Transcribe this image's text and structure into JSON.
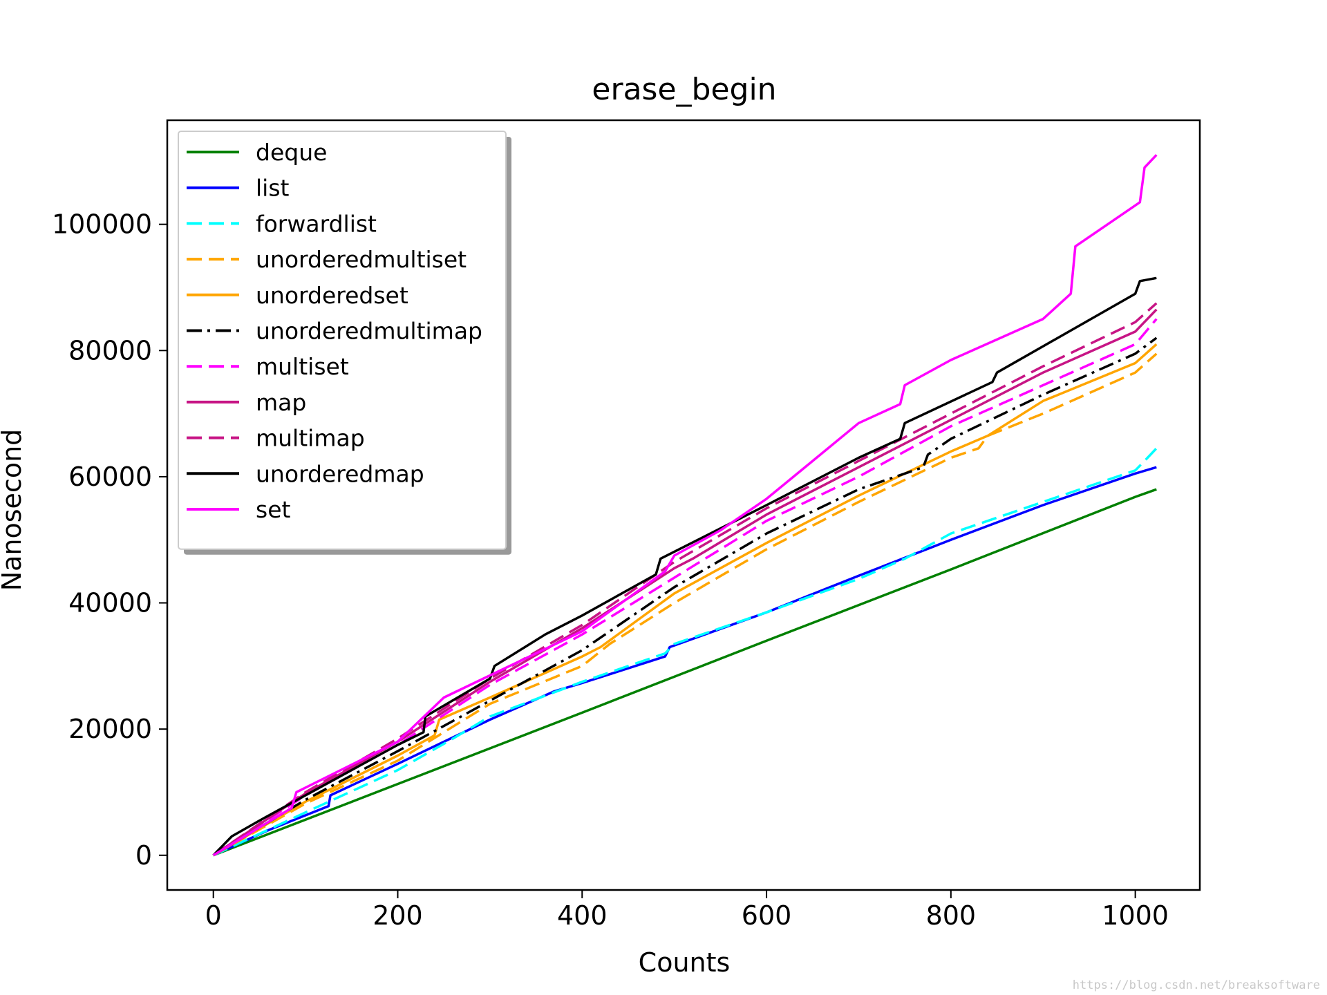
{
  "chart_data": {
    "type": "line",
    "title": "erase_begin",
    "xlabel": "Counts",
    "ylabel": "Nanosecond",
    "xlim": [
      -50,
      1070
    ],
    "ylim": [
      -5500,
      116500
    ],
    "xticks": [
      0,
      200,
      400,
      600,
      800,
      1000
    ],
    "yticks": [
      0,
      20000,
      40000,
      60000,
      80000,
      100000
    ],
    "grid": false,
    "legend_position": "upper-left",
    "series": [
      {
        "name": "deque",
        "color": "#008000",
        "dash": "solid",
        "points": [
          [
            0,
            0
          ],
          [
            200,
            11300
          ],
          [
            400,
            22600
          ],
          [
            600,
            34000
          ],
          [
            800,
            45300
          ],
          [
            1000,
            56800
          ],
          [
            1023,
            58000
          ]
        ]
      },
      {
        "name": "list",
        "color": "#0000ff",
        "dash": "solid",
        "points": [
          [
            0,
            0
          ],
          [
            60,
            4000
          ],
          [
            125,
            7800
          ],
          [
            127,
            9500
          ],
          [
            200,
            14500
          ],
          [
            300,
            21500
          ],
          [
            370,
            26000
          ],
          [
            400,
            27300
          ],
          [
            490,
            31500
          ],
          [
            495,
            33000
          ],
          [
            600,
            38500
          ],
          [
            700,
            44300
          ],
          [
            800,
            50000
          ],
          [
            900,
            55500
          ],
          [
            1000,
            60500
          ],
          [
            1023,
            61500
          ]
        ]
      },
      {
        "name": "forwardlist",
        "color": "#00ffff",
        "dash": "dashed",
        "points": [
          [
            0,
            0
          ],
          [
            100,
            6800
          ],
          [
            200,
            13500
          ],
          [
            260,
            18500
          ],
          [
            300,
            22000
          ],
          [
            400,
            27500
          ],
          [
            490,
            32000
          ],
          [
            500,
            33500
          ],
          [
            600,
            38500
          ],
          [
            700,
            43800
          ],
          [
            750,
            47000
          ],
          [
            800,
            51000
          ],
          [
            900,
            56000
          ],
          [
            1000,
            61000
          ],
          [
            1010,
            62500
          ],
          [
            1023,
            64500
          ]
        ]
      },
      {
        "name": "unorderedmultiset",
        "color": "#ffa500",
        "dash": "dashed",
        "points": [
          [
            0,
            0
          ],
          [
            100,
            8200
          ],
          [
            200,
            15000
          ],
          [
            300,
            24000
          ],
          [
            400,
            30000
          ],
          [
            430,
            33500
          ],
          [
            500,
            40000
          ],
          [
            600,
            48500
          ],
          [
            700,
            56000
          ],
          [
            800,
            63000
          ],
          [
            830,
            64500
          ],
          [
            840,
            66500
          ],
          [
            900,
            70000
          ],
          [
            1000,
            76500
          ],
          [
            1023,
            79500
          ]
        ]
      },
      {
        "name": "unorderedset",
        "color": "#ffa500",
        "dash": "solid",
        "points": [
          [
            0,
            0
          ],
          [
            100,
            8500
          ],
          [
            200,
            15800
          ],
          [
            240,
            19000
          ],
          [
            245,
            21500
          ],
          [
            300,
            25000
          ],
          [
            400,
            31500
          ],
          [
            420,
            33000
          ],
          [
            500,
            41500
          ],
          [
            600,
            49500
          ],
          [
            700,
            57000
          ],
          [
            800,
            64000
          ],
          [
            840,
            66500
          ],
          [
            900,
            72000
          ],
          [
            1000,
            78000
          ],
          [
            1023,
            81000
          ]
        ]
      },
      {
        "name": "unorderedmultimap",
        "color": "#000000",
        "dash": "dashdot",
        "points": [
          [
            0,
            0
          ],
          [
            100,
            8800
          ],
          [
            200,
            16500
          ],
          [
            300,
            24500
          ],
          [
            400,
            32500
          ],
          [
            430,
            35500
          ],
          [
            500,
            42500
          ],
          [
            600,
            51000
          ],
          [
            700,
            58000
          ],
          [
            770,
            61500
          ],
          [
            775,
            63500
          ],
          [
            800,
            66000
          ],
          [
            900,
            73000
          ],
          [
            1000,
            79500
          ],
          [
            1023,
            82000
          ]
        ]
      },
      {
        "name": "multiset",
        "color": "#ff00ff",
        "dash": "dashed",
        "points": [
          [
            0,
            0
          ],
          [
            100,
            9500
          ],
          [
            200,
            17500
          ],
          [
            300,
            27000
          ],
          [
            400,
            35000
          ],
          [
            500,
            44000
          ],
          [
            600,
            53000
          ],
          [
            700,
            60000
          ],
          [
            800,
            68000
          ],
          [
            900,
            74500
          ],
          [
            1000,
            81000
          ],
          [
            1023,
            85000
          ]
        ]
      },
      {
        "name": "map",
        "color": "#c71585",
        "dash": "solid",
        "points": [
          [
            0,
            0
          ],
          [
            100,
            9800
          ],
          [
            200,
            18000
          ],
          [
            300,
            27500
          ],
          [
            400,
            36000
          ],
          [
            500,
            45500
          ],
          [
            520,
            47000
          ],
          [
            600,
            54000
          ],
          [
            700,
            61500
          ],
          [
            800,
            69000
          ],
          [
            900,
            76500
          ],
          [
            1000,
            83000
          ],
          [
            1023,
            86500
          ]
        ]
      },
      {
        "name": "multimap",
        "color": "#c71585",
        "dash": "dashed",
        "points": [
          [
            0,
            0
          ],
          [
            100,
            10000
          ],
          [
            200,
            18500
          ],
          [
            300,
            28000
          ],
          [
            400,
            36500
          ],
          [
            500,
            46500
          ],
          [
            600,
            55000
          ],
          [
            700,
            62500
          ],
          [
            800,
            70000
          ],
          [
            900,
            77500
          ],
          [
            1000,
            84500
          ],
          [
            1023,
            87500
          ]
        ]
      },
      {
        "name": "unorderedmap",
        "color": "#000000",
        "dash": "solid",
        "points": [
          [
            0,
            0
          ],
          [
            20,
            3000
          ],
          [
            50,
            5500
          ],
          [
            100,
            9500
          ],
          [
            150,
            13500
          ],
          [
            200,
            17500
          ],
          [
            228,
            19500
          ],
          [
            230,
            22000
          ],
          [
            300,
            28000
          ],
          [
            305,
            30000
          ],
          [
            360,
            35000
          ],
          [
            400,
            38000
          ],
          [
            480,
            44500
          ],
          [
            485,
            47000
          ],
          [
            600,
            55500
          ],
          [
            700,
            63000
          ],
          [
            745,
            66000
          ],
          [
            750,
            68500
          ],
          [
            845,
            75000
          ],
          [
            850,
            76500
          ],
          [
            1000,
            89000
          ],
          [
            1005,
            91000
          ],
          [
            1023,
            91500
          ]
        ]
      },
      {
        "name": "set",
        "color": "#ff00ff",
        "dash": "solid",
        "points": [
          [
            0,
            0
          ],
          [
            85,
            7500
          ],
          [
            90,
            10000
          ],
          [
            200,
            18000
          ],
          [
            250,
            25000
          ],
          [
            300,
            28500
          ],
          [
            400,
            35500
          ],
          [
            490,
            45000
          ],
          [
            500,
            47500
          ],
          [
            550,
            51500
          ],
          [
            600,
            56500
          ],
          [
            650,
            62500
          ],
          [
            700,
            68500
          ],
          [
            745,
            71500
          ],
          [
            750,
            74500
          ],
          [
            800,
            78500
          ],
          [
            900,
            85000
          ],
          [
            930,
            89000
          ],
          [
            935,
            96500
          ],
          [
            1000,
            103000
          ],
          [
            1005,
            103500
          ],
          [
            1010,
            109000
          ],
          [
            1023,
            111000
          ]
        ]
      }
    ]
  },
  "watermark": "https://blog.csdn.net/breaksoftware"
}
